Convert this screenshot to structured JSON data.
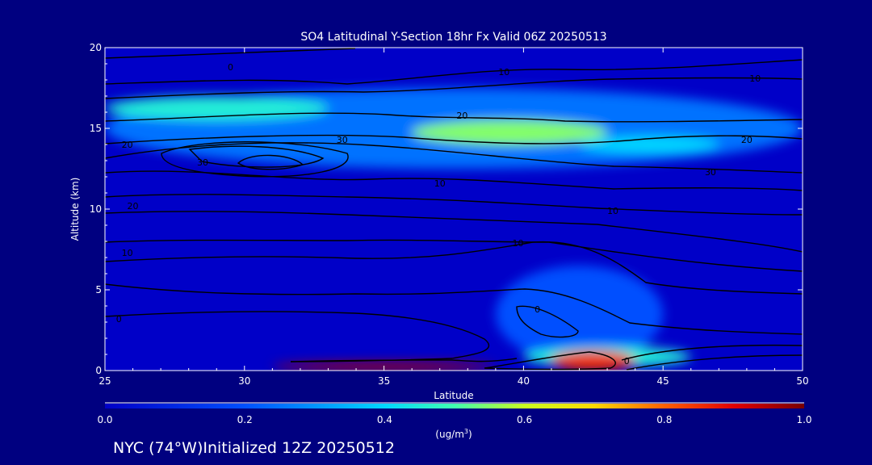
{
  "chart_data": {
    "type": "heatmap",
    "title": "SO4 Latitudinal Y-Section 18hr  Fx Valid 06Z 20250513",
    "xlabel": "Latitude",
    "ylabel": "Altitude (km)",
    "xlim": [
      25,
      50
    ],
    "ylim": [
      0,
      20
    ],
    "x_ticks": [
      "25",
      "30",
      "35",
      "40",
      "45",
      "50"
    ],
    "y_ticks": [
      "0",
      "5",
      "10",
      "15",
      "20"
    ],
    "colorbar": {
      "min": 0.0,
      "max": 1.0,
      "tick_labels": [
        "0.0",
        "0.2",
        "0.4",
        "0.6",
        "0.8",
        "1.0"
      ],
      "units_label": "(ug/m",
      "units_superscript": "3",
      "units_close": ")"
    },
    "concentration_regions": [
      {
        "lat": [
          25,
          50
        ],
        "alt": [
          12.5,
          17.5
        ],
        "value": 0.25
      },
      {
        "lat": [
          25,
          33
        ],
        "alt": [
          15.5,
          17.0
        ],
        "value": 0.45
      },
      {
        "lat": [
          36,
          43
        ],
        "alt": [
          14.0,
          15.5
        ],
        "value": 0.55
      },
      {
        "lat": [
          42,
          47
        ],
        "alt": [
          13.5,
          14.5
        ],
        "value": 0.4
      },
      {
        "lat": [
          39,
          45
        ],
        "alt": [
          0.5,
          6.5
        ],
        "value": 0.2
      },
      {
        "lat": [
          40,
          46
        ],
        "alt": [
          0.2,
          1.5
        ],
        "value": 0.45
      },
      {
        "lat": [
          31,
          39
        ],
        "alt": [
          0.0,
          0.5
        ],
        "value": 0.95
      },
      {
        "lat": [
          41,
          44
        ],
        "alt": [
          0.0,
          1.2
        ],
        "value": 0.85
      }
    ],
    "contour_labels": [
      {
        "text": "0",
        "lat": 29.5,
        "alt": 18.8
      },
      {
        "text": "10",
        "lat": 39.3,
        "alt": 18.5
      },
      {
        "text": "10",
        "lat": 48.3,
        "alt": 18.1
      },
      {
        "text": "20",
        "lat": 37.8,
        "alt": 15.8
      },
      {
        "text": "20",
        "lat": 48.0,
        "alt": 14.3
      },
      {
        "text": "30",
        "lat": 33.5,
        "alt": 14.3
      },
      {
        "text": "30",
        "lat": 46.7,
        "alt": 12.3
      },
      {
        "text": "10",
        "lat": 37.0,
        "alt": 11.6
      },
      {
        "text": "20",
        "lat": 25.8,
        "alt": 14.0
      },
      {
        "text": "30",
        "lat": 28.5,
        "alt": 12.9
      },
      {
        "text": "20",
        "lat": 26.0,
        "alt": 10.2
      },
      {
        "text": "10",
        "lat": 43.2,
        "alt": 9.9
      },
      {
        "text": "10",
        "lat": 39.8,
        "alt": 7.9
      },
      {
        "text": "10",
        "lat": 25.8,
        "alt": 7.3
      },
      {
        "text": "0",
        "lat": 25.5,
        "alt": 3.2
      },
      {
        "text": "0",
        "lat": 40.5,
        "alt": 3.8
      },
      {
        "text": "0",
        "lat": 43.7,
        "alt": 0.6
      }
    ]
  },
  "footer": {
    "location": "NYC (74°W)Initialized 12Z 20250512"
  },
  "colors": {
    "background": "#000080",
    "plot_background": "#0000c8",
    "contour": "#000000",
    "text": "#ffffff"
  }
}
